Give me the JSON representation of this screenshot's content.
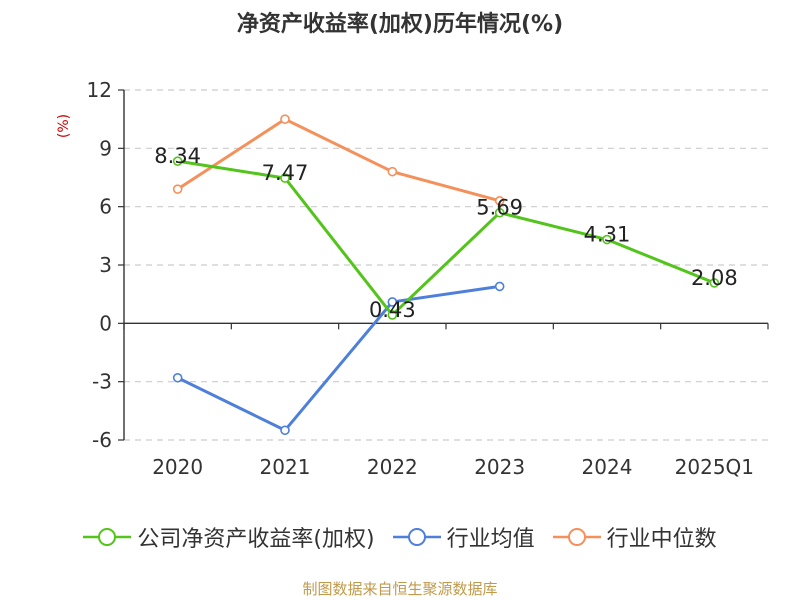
{
  "chart_data": {
    "type": "line",
    "title": "净资产收益率(加权)历年情况(%)",
    "ylabel": "(%)",
    "xlabel": "",
    "categories": [
      "2020",
      "2021",
      "2022",
      "2023",
      "2024",
      "2025Q1"
    ],
    "ylim": [
      -6,
      12
    ],
    "yticks": [
      -6,
      -3,
      0,
      3,
      6,
      9,
      12
    ],
    "grid": true,
    "legend_position": "bottom",
    "series": [
      {
        "name": "公司净资产收益率(加权)",
        "color": "#52c41a",
        "values": [
          8.34,
          7.47,
          0.43,
          5.69,
          4.31,
          2.08
        ],
        "data_labels": [
          "8.34",
          "7.47",
          "0.43",
          "5.69",
          "4.31",
          "2.08"
        ]
      },
      {
        "name": "行业均值",
        "color": "#4e7fdb",
        "values": [
          -2.8,
          -5.5,
          1.1,
          1.9,
          null,
          null
        ]
      },
      {
        "name": "行业中位数",
        "color": "#f5905a",
        "values": [
          6.9,
          10.5,
          7.8,
          6.3,
          null,
          null
        ]
      }
    ]
  },
  "source": "制图数据来自恒生聚源数据库"
}
